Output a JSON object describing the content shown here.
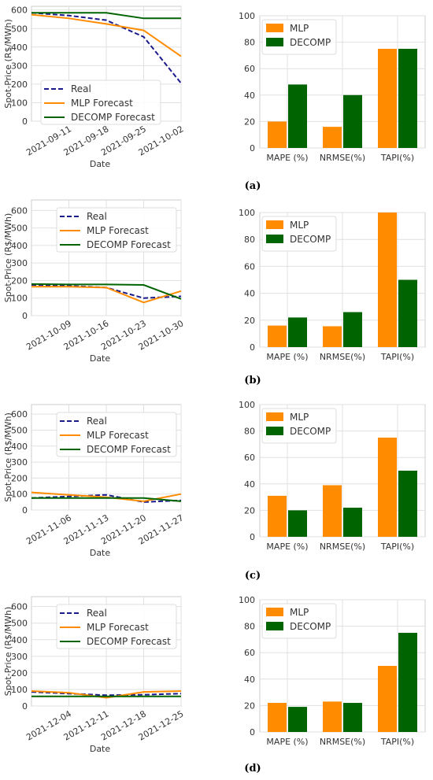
{
  "colors": {
    "real": "#1a1a8c",
    "mlp": "#ff8c00",
    "decomp": "#006400",
    "grid": "#e0e0e0",
    "axis": "#cccccc"
  },
  "line_legend": [
    "Real",
    "MLP Forecast",
    "DECOMP Forecast"
  ],
  "bar_legend": [
    "MLP",
    "DECOMP"
  ],
  "chart_data": [
    {
      "panel": "a",
      "type": "line",
      "ylabel": "Spot-Price (R$/MWh)",
      "xlabel": "Date",
      "ylim": [
        0,
        620
      ],
      "yticks": [
        0,
        100,
        200,
        300,
        400,
        500,
        600
      ],
      "xticks": [
        "2021-09-11",
        "2021-09-18",
        "2021-09-25",
        "2021-10-02"
      ],
      "legend_position": "center-left",
      "x": [
        "2021-09-04",
        "2021-09-11",
        "2021-09-18",
        "2021-09-25",
        "2021-10-02"
      ],
      "series": [
        {
          "name": "Real",
          "style": "dashed",
          "values": [
            585,
            570,
            545,
            455,
            205
          ]
        },
        {
          "name": "MLP Forecast",
          "style": "solid",
          "values": [
            575,
            555,
            525,
            490,
            350
          ]
        },
        {
          "name": "DECOMP Forecast",
          "style": "solid",
          "values": [
            585,
            585,
            585,
            555,
            555
          ]
        }
      ],
      "caption": "(a)"
    },
    {
      "panel": "a",
      "type": "bar",
      "categories": [
        "MAPE (%)",
        "NRMSE(%)",
        "TAPI(%)"
      ],
      "ylim": [
        0,
        100
      ],
      "yticks": [
        0,
        20,
        40,
        60,
        80,
        100
      ],
      "legend_position": "top-left",
      "series": [
        {
          "name": "MLP",
          "values": [
            20,
            16,
            75
          ]
        },
        {
          "name": "DECOMP",
          "values": [
            48,
            40,
            75
          ]
        }
      ]
    },
    {
      "panel": "b",
      "type": "line",
      "ylabel": "Spot-Price (R$/MWh)",
      "xlabel": "Date",
      "ylim": [
        0,
        660
      ],
      "yticks": [
        0,
        100,
        200,
        300,
        400,
        500,
        600
      ],
      "xticks": [
        "2021-10-09",
        "2021-10-16",
        "2021-10-23",
        "2021-10-30"
      ],
      "legend_position": "top-center",
      "x": [
        "2021-10-02",
        "2021-10-09",
        "2021-10-16",
        "2021-10-23",
        "2021-10-30"
      ],
      "series": [
        {
          "name": "Real",
          "style": "dashed",
          "values": [
            175,
            170,
            160,
            100,
            110
          ]
        },
        {
          "name": "MLP Forecast",
          "style": "solid",
          "values": [
            165,
            165,
            160,
            75,
            140
          ]
        },
        {
          "name": "DECOMP Forecast",
          "style": "solid",
          "values": [
            180,
            178,
            178,
            175,
            95
          ]
        }
      ],
      "caption": "(b)"
    },
    {
      "panel": "b",
      "type": "bar",
      "categories": [
        "MAPE (%)",
        "NRMSE(%)",
        "TAPI(%)"
      ],
      "ylim": [
        0,
        100
      ],
      "yticks": [
        0,
        20,
        40,
        60,
        80,
        100
      ],
      "legend_position": "top-left",
      "series": [
        {
          "name": "MLP",
          "values": [
            16,
            15.5,
            100
          ]
        },
        {
          "name": "DECOMP",
          "values": [
            22,
            26,
            50
          ]
        }
      ]
    },
    {
      "panel": "c",
      "type": "line",
      "ylabel": "Spot-Price (R$/MWh)",
      "xlabel": "Date",
      "ylim": [
        0,
        660
      ],
      "yticks": [
        0,
        100,
        200,
        300,
        400,
        500,
        600
      ],
      "xticks": [
        "2021-11-06",
        "2021-11-13",
        "2021-11-20",
        "2021-11-27"
      ],
      "legend_position": "top-center",
      "x": [
        "2021-10-30",
        "2021-11-06",
        "2021-11-13",
        "2021-11-20",
        "2021-11-27"
      ],
      "series": [
        {
          "name": "Real",
          "style": "dashed",
          "values": [
            75,
            85,
            95,
            50,
            60
          ]
        },
        {
          "name": "MLP Forecast",
          "style": "solid",
          "values": [
            110,
            95,
            80,
            55,
            100
          ]
        },
        {
          "name": "DECOMP Forecast",
          "style": "solid",
          "values": [
            75,
            75,
            75,
            75,
            55
          ]
        }
      ],
      "caption": "(c)"
    },
    {
      "panel": "c",
      "type": "bar",
      "categories": [
        "MAPE (%)",
        "NRMSE(%)",
        "TAPI(%)"
      ],
      "ylim": [
        0,
        100
      ],
      "yticks": [
        0,
        20,
        40,
        60,
        80,
        100
      ],
      "legend_position": "top-left",
      "series": [
        {
          "name": "MLP",
          "values": [
            31,
            39,
            75
          ]
        },
        {
          "name": "DECOMP",
          "values": [
            20,
            22,
            50
          ]
        }
      ]
    },
    {
      "panel": "d",
      "type": "line",
      "ylabel": "Spot-Price (R$/MWh)",
      "xlabel": "Date",
      "ylim": [
        0,
        660
      ],
      "yticks": [
        0,
        100,
        200,
        300,
        400,
        500,
        600
      ],
      "xticks": [
        "2021-12-04",
        "2021-12-11",
        "2021-12-18",
        "2021-12-25"
      ],
      "legend_position": "top-center",
      "x": [
        "2021-11-27",
        "2021-12-04",
        "2021-12-11",
        "2021-12-18",
        "2021-12-25"
      ],
      "series": [
        {
          "name": "Real",
          "style": "dashed",
          "values": [
            85,
            75,
            65,
            68,
            75
          ]
        },
        {
          "name": "MLP Forecast",
          "style": "solid",
          "values": [
            90,
            80,
            50,
            85,
            90
          ]
        },
        {
          "name": "DECOMP Forecast",
          "style": "solid",
          "values": [
            58,
            58,
            58,
            58,
            58
          ]
        }
      ],
      "caption": "(d)"
    },
    {
      "panel": "d",
      "type": "bar",
      "categories": [
        "MAPE (%)",
        "NRMSE(%)",
        "TAPI(%)"
      ],
      "ylim": [
        0,
        100
      ],
      "yticks": [
        0,
        20,
        40,
        60,
        80,
        100
      ],
      "legend_position": "top-left",
      "series": [
        {
          "name": "MLP",
          "values": [
            22,
            23,
            50
          ]
        },
        {
          "name": "DECOMP",
          "values": [
            19,
            22,
            75
          ]
        }
      ]
    }
  ]
}
